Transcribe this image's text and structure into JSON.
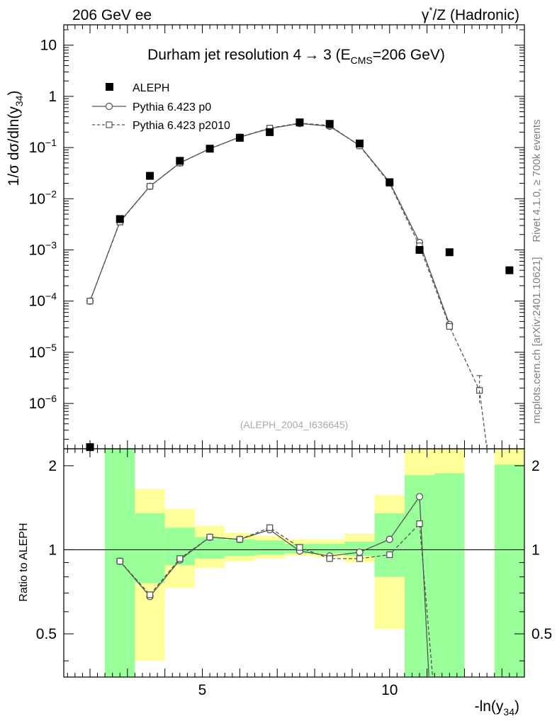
{
  "header": {
    "left": "206 GeV ee",
    "right_prefix": "γ",
    "right_sup": "*",
    "right_suffix": "/Z (Hadronic)"
  },
  "side": {
    "rivet": "Rivet 4.1.0, ≥ 700k events",
    "mcplots": "mcplots.cern.ch [arXiv:2401.10621]"
  },
  "chart_data": {
    "type": "line",
    "title_main": "Durham jet resolution 4",
    "title_arrow": "→",
    "title_tail": " 3 (E",
    "title_sub": "CMS",
    "title_end": "=206 GeV)",
    "watermark": "(ALEPH_2004_I636645)",
    "ylabel_main": "1/σ  dσ/dln(y",
    "ylabel_sub": "34",
    "ylabel_end": ")",
    "xlabel_main": "-ln(y",
    "xlabel_sub": "34",
    "xlabel_end": ")",
    "ratio_ylabel": "Ratio to ALEPH",
    "xlim": [
      1.3,
      13.6
    ],
    "ylim_main": [
      1.3e-07,
      25
    ],
    "ylim_ratio": [
      0.35,
      2.3
    ],
    "x_ticks": [
      5,
      10
    ],
    "x_tick_labels": [
      "5",
      "10"
    ],
    "y_main_ticks": [
      {
        "v": 10,
        "m": "10",
        "e": ""
      },
      {
        "v": 1,
        "m": "1",
        "e": ""
      },
      {
        "v": 0.1,
        "m": "10",
        "e": "−1"
      },
      {
        "v": 0.01,
        "m": "10",
        "e": "−2"
      },
      {
        "v": 0.001,
        "m": "10",
        "e": "−3"
      },
      {
        "v": 0.0001,
        "m": "10",
        "e": "−4"
      },
      {
        "v": 1e-05,
        "m": "10",
        "e": "−5"
      },
      {
        "v": 1e-06,
        "m": "10",
        "e": "−6"
      }
    ],
    "y_ratio_ticks": [
      0.5,
      1,
      2
    ],
    "y_ratio_tick_labels": [
      "0.5",
      "1",
      "2"
    ],
    "legend": [
      "ALEPH",
      "Pythia 6.423 p0",
      "Pythia 6.423 p2010"
    ],
    "data_series": {
      "name": "ALEPH",
      "x": [
        2.0,
        2.8,
        3.6,
        4.4,
        5.2,
        6.0,
        6.8,
        7.6,
        8.4,
        9.2,
        10.0,
        10.8,
        11.6,
        13.2
      ],
      "y": [
        1.4e-07,
        0.004,
        0.028,
        0.055,
        0.095,
        0.155,
        0.2,
        0.31,
        0.29,
        0.12,
        0.021,
        0.001,
        0.0009,
        0.0004
      ]
    },
    "series": [
      {
        "name": "Pythia 6.423 p0",
        "x": [
          2.0,
          2.8,
          3.6,
          4.4,
          5.2,
          6.0,
          6.8,
          7.6,
          8.4,
          9.2,
          10.0,
          10.8,
          11.6
        ],
        "y": [
          0.0001,
          0.0036,
          0.0175,
          0.05,
          0.095,
          0.16,
          0.235,
          0.295,
          0.26,
          0.11,
          0.021,
          0.0014,
          3.5e-05
        ],
        "ratio_x": [
          2.8,
          3.6,
          4.4,
          5.2,
          6.0,
          6.8,
          7.6,
          8.4,
          9.2,
          10.0,
          10.8,
          11.05
        ],
        "ratio_y": [
          0.91,
          0.68,
          0.92,
          1.11,
          1.09,
          1.18,
          0.99,
          0.95,
          0.98,
          1.09,
          1.55,
          0.3
        ]
      },
      {
        "name": "Pythia 6.423 p2010",
        "x": [
          2.0,
          2.8,
          3.6,
          4.4,
          5.2,
          6.0,
          6.8,
          7.6,
          8.4,
          9.2,
          10.0,
          10.8,
          11.6,
          12.4,
          12.6
        ],
        "y": [
          0.0001,
          0.0035,
          0.0175,
          0.05,
          0.095,
          0.16,
          0.24,
          0.3,
          0.27,
          0.108,
          0.02,
          0.0012,
          3.2e-05,
          1.8e-06,
          1.3e-07
        ],
        "ratio_x": [
          2.8,
          3.6,
          4.4,
          5.2,
          6.0,
          6.8,
          7.6,
          8.4,
          9.2,
          10.0,
          10.8,
          11.15
        ],
        "ratio_y": [
          0.91,
          0.69,
          0.93,
          1.11,
          1.09,
          1.2,
          1.02,
          0.93,
          0.93,
          0.96,
          1.24,
          0.3
        ]
      }
    ],
    "uncertainty_bands": [
      {
        "x0": 2.4,
        "x1": 3.2,
        "y_lo": 0.3,
        "y_hi": 2.3,
        "g_lo": 0.3,
        "g_hi": 2.3
      },
      {
        "x0": 3.2,
        "x1": 4.0,
        "y_lo": 0.4,
        "y_hi": 1.65,
        "g_lo": 0.76,
        "g_hi": 1.35
      },
      {
        "x0": 4.0,
        "x1": 4.8,
        "y_lo": 0.73,
        "y_hi": 1.4,
        "g_lo": 0.88,
        "g_hi": 1.2
      },
      {
        "x0": 4.8,
        "x1": 5.6,
        "y_lo": 0.86,
        "y_hi": 1.22,
        "g_lo": 0.93,
        "g_hi": 1.11
      },
      {
        "x0": 5.6,
        "x1": 6.4,
        "y_lo": 0.91,
        "y_hi": 1.15,
        "g_lo": 0.95,
        "g_hi": 1.09
      },
      {
        "x0": 6.4,
        "x1": 7.2,
        "y_lo": 0.93,
        "y_hi": 1.12,
        "g_lo": 0.96,
        "g_hi": 1.08
      },
      {
        "x0": 7.2,
        "x1": 8.0,
        "y_lo": 0.95,
        "y_hi": 1.09,
        "g_lo": 0.97,
        "g_hi": 1.05
      },
      {
        "x0": 8.0,
        "x1": 8.8,
        "y_lo": 0.94,
        "y_hi": 1.09,
        "g_lo": 0.97,
        "g_hi": 1.05
      },
      {
        "x0": 8.8,
        "x1": 9.6,
        "y_lo": 0.9,
        "y_hi": 1.14,
        "g_lo": 0.95,
        "g_hi": 1.07
      },
      {
        "x0": 9.6,
        "x1": 10.4,
        "y_lo": 0.52,
        "y_hi": 1.57,
        "g_lo": 0.8,
        "g_hi": 1.35
      },
      {
        "x0": 10.4,
        "x1": 11.2,
        "y_lo": 0.3,
        "y_hi": 2.3,
        "g_lo": 0.3,
        "g_hi": 1.85
      },
      {
        "x0": 11.2,
        "x1": 12.0,
        "y_lo": 0.3,
        "y_hi": 2.3,
        "g_lo": 0.3,
        "g_hi": 1.88
      },
      {
        "x0": 12.8,
        "x1": 13.6,
        "y_lo": 0.3,
        "y_hi": 2.3,
        "g_lo": 0.3,
        "g_hi": 2.02
      }
    ],
    "colors": {
      "green": "#99ff99",
      "yellow": "#ffff99",
      "data": "#000000",
      "p0": "#555555",
      "p2010": "#555555"
    }
  }
}
